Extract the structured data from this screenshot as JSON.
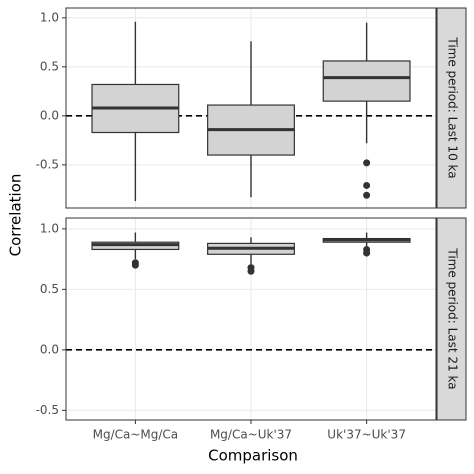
{
  "xlabel": "Comparison",
  "ylabel": "Correlation",
  "chart_data": [
    {
      "type": "box",
      "strip": "Time period: Last 10 ka",
      "categories": [
        "Mg/Ca~Mg/Ca",
        "Mg/Ca~Uk'37",
        "Uk'37~Uk'37"
      ],
      "boxes": [
        {
          "min": -0.87,
          "q1": -0.17,
          "median": 0.08,
          "q3": 0.32,
          "max": 0.96,
          "outliers": []
        },
        {
          "min": -0.83,
          "q1": -0.4,
          "median": -0.14,
          "q3": 0.11,
          "max": 0.76,
          "outliers": []
        },
        {
          "min": -0.28,
          "q1": 0.15,
          "median": 0.39,
          "q3": 0.56,
          "max": 0.95,
          "outliers": [
            -0.48,
            -0.71,
            -0.81
          ]
        }
      ],
      "color": "#d3d3d3",
      "hline": 0,
      "grid": true,
      "ylim": [
        -0.94,
        1.1
      ],
      "yticks": [
        {
          "value": -0.5,
          "label": "-0.5"
        },
        {
          "value": 0,
          "label": "0.0"
        },
        0.5,
        {
          "value": 1,
          "label": "1.0"
        }
      ]
    },
    {
      "type": "box",
      "strip": "Time period: Last 21 ka",
      "categories": [
        "Mg/Ca~Mg/Ca",
        "Mg/Ca~Uk'37",
        "Uk'37~Uk'37"
      ],
      "boxes": [
        {
          "min": 0.75,
          "q1": 0.83,
          "median": 0.87,
          "q3": 0.89,
          "max": 0.97,
          "outliers": [
            0.72,
            0.7
          ]
        },
        {
          "min": 0.71,
          "q1": 0.79,
          "median": 0.84,
          "q3": 0.88,
          "max": 0.93,
          "outliers": [
            0.68,
            0.65
          ]
        },
        {
          "min": 0.85,
          "q1": 0.89,
          "median": 0.91,
          "q3": 0.92,
          "max": 0.97,
          "outliers": [
            0.83,
            0.8
          ]
        }
      ],
      "color": "#d3d3d3",
      "hline": 0,
      "grid": true,
      "ylim": [
        -0.58,
        1.09
      ],
      "yticks": [
        {
          "value": -0.5,
          "label": "-0.5"
        },
        {
          "value": 0,
          "label": "0.0"
        },
        0.5,
        {
          "value": 1,
          "label": "1.0"
        }
      ]
    }
  ]
}
